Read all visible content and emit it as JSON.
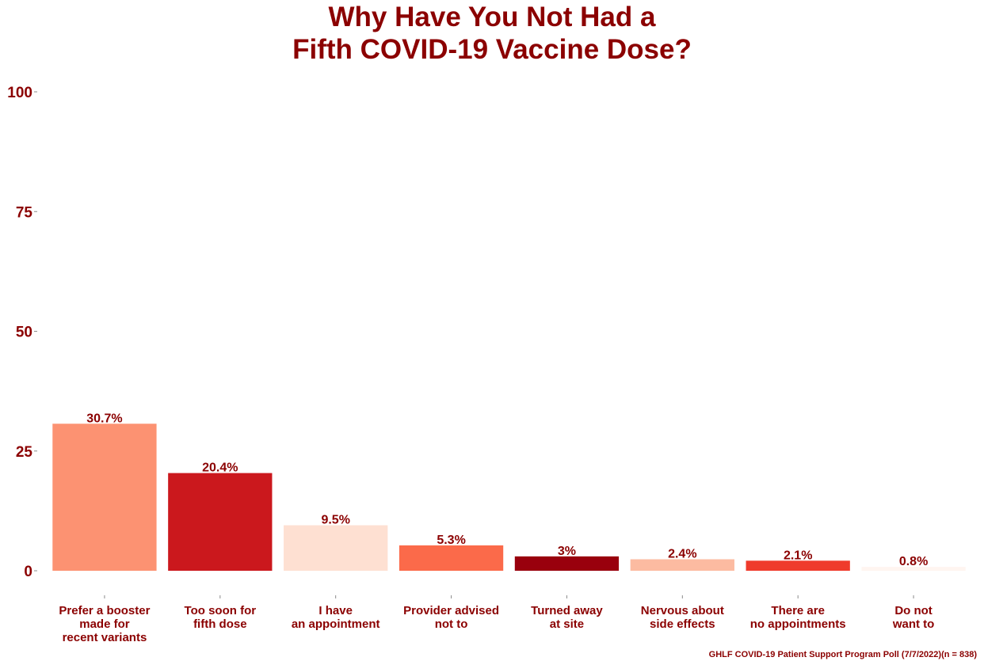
{
  "chart_data": {
    "type": "bar",
    "title": [
      "Why Have You Not Had a",
      "Fifth COVID-19 Vaccine Dose?"
    ],
    "caption": "GHLF COVID-19 Patient Support Program Poll (7/7/2022)(n = 838)",
    "xlabel": "",
    "ylabel": "",
    "ylim": [
      0,
      100
    ],
    "yticks": [
      0,
      25,
      50,
      75,
      100
    ],
    "grid": false,
    "legend": "none",
    "categories": [
      [
        "Prefer a booster",
        "made for",
        "recent variants"
      ],
      [
        "Too soon for",
        "fifth dose"
      ],
      [
        "I have",
        "an appointment"
      ],
      [
        "Provider advised",
        "not to"
      ],
      [
        "Turned away",
        "at site"
      ],
      [
        "Nervous about",
        "side effects"
      ],
      [
        "There are",
        "no appointments"
      ],
      [
        "Do not",
        "want to"
      ]
    ],
    "values": [
      30.7,
      20.4,
      9.5,
      5.3,
      3,
      2.4,
      2.1,
      0.8
    ],
    "data_labels": [
      "30.7%",
      "20.4%",
      "9.5%",
      "5.3%",
      "3%",
      "2.4%",
      "2.1%",
      "0.8%"
    ],
    "colors": [
      "#fc9272",
      "#cb181d",
      "#fee0d2",
      "#fb6a4a",
      "#99000d",
      "#fcbba1",
      "#ef3b2c",
      "#fff5f0"
    ],
    "text_color": "#8b0000"
  }
}
